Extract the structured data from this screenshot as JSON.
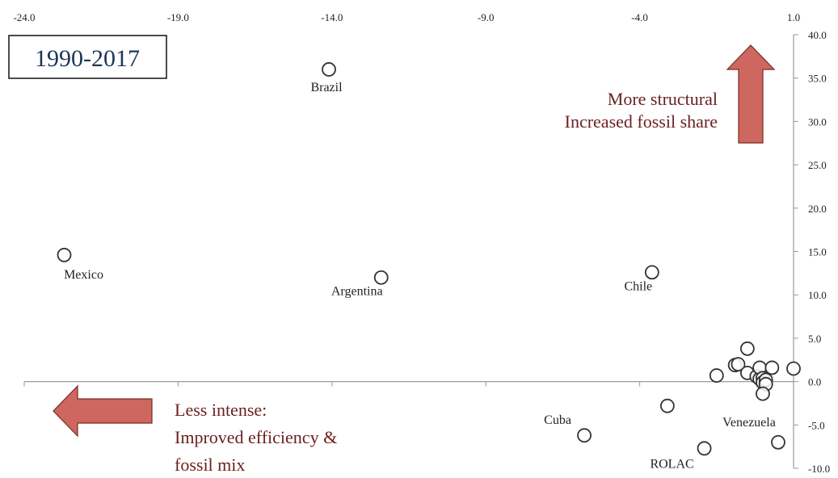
{
  "chart_title": "1990-2017",
  "annotations": {
    "top_right": [
      "More structural",
      "Increased fossil share"
    ],
    "bottom_left": [
      "Less intense:",
      "Improved efficiency &",
      "fossil mix"
    ]
  },
  "colors": {
    "arrow_fill": "#cd675f",
    "annotation_text": "#6b1f1f",
    "title_text": "#1d3557",
    "axis": "#9a9a9a",
    "marker": "#333333"
  },
  "chart_data": {
    "type": "scatter",
    "title": "1990-2017",
    "xlim": [
      -24.0,
      1.0
    ],
    "ylim": [
      -10.0,
      40.0
    ],
    "x_ticks": [
      "-24.0",
      "-19.0",
      "-14.0",
      "-9.0",
      "-4.0",
      "1.0"
    ],
    "y_ticks": [
      "40.0",
      "35.0",
      "30.0",
      "25.0",
      "20.0",
      "15.0",
      "10.0",
      "5.0",
      "0.0",
      "-5.0",
      "-10.0"
    ],
    "grid": false,
    "points": [
      {
        "x": -14.1,
        "y": 36.0,
        "label": "Brazil"
      },
      {
        "x": -22.7,
        "y": 14.6,
        "label": "Mexico"
      },
      {
        "x": -12.4,
        "y": 12.0,
        "label": "Argentina"
      },
      {
        "x": -3.6,
        "y": 12.6,
        "label": "Chile"
      },
      {
        "x": -5.8,
        "y": -6.2,
        "label": "Cuba"
      },
      {
        "x": -1.9,
        "y": -7.7,
        "label": "ROLAC"
      },
      {
        "x": 0.5,
        "y": -7.0,
        "label": "Venezuela"
      },
      {
        "x": -3.1,
        "y": -2.8,
        "label": ""
      },
      {
        "x": -1.5,
        "y": 0.7,
        "label": ""
      },
      {
        "x": -0.9,
        "y": 1.9,
        "label": ""
      },
      {
        "x": -0.8,
        "y": 2.0,
        "label": ""
      },
      {
        "x": -0.5,
        "y": 3.8,
        "label": ""
      },
      {
        "x": -0.5,
        "y": 1.0,
        "label": ""
      },
      {
        "x": -0.2,
        "y": 0.6,
        "label": ""
      },
      {
        "x": -0.1,
        "y": 0.3,
        "label": ""
      },
      {
        "x": -0.1,
        "y": 1.6,
        "label": ""
      },
      {
        "x": 0.0,
        "y": 0.4,
        "label": ""
      },
      {
        "x": 0.0,
        "y": -0.1,
        "label": ""
      },
      {
        "x": 0.1,
        "y": 0.2,
        "label": ""
      },
      {
        "x": 0.1,
        "y": -0.3,
        "label": ""
      },
      {
        "x": 0.0,
        "y": -1.4,
        "label": ""
      },
      {
        "x": 0.3,
        "y": 1.6,
        "label": ""
      },
      {
        "x": 1.0,
        "y": 1.5,
        "label": ""
      }
    ]
  }
}
